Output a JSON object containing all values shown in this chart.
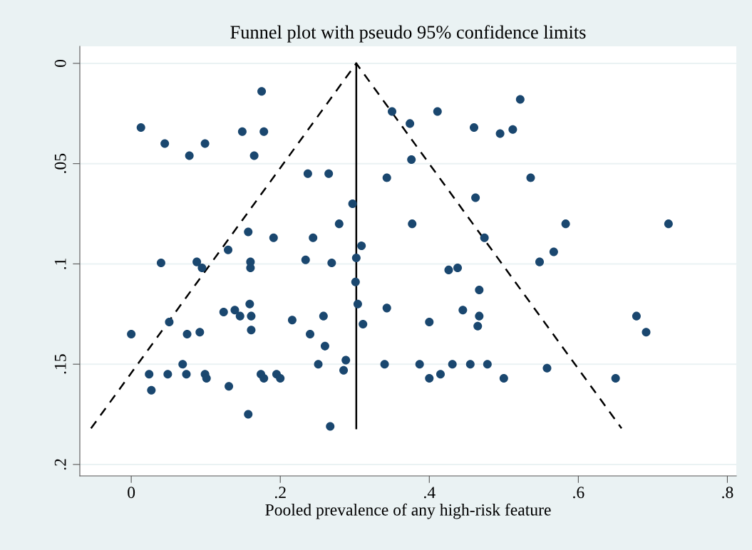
{
  "chart_data": {
    "type": "scatter",
    "title": "Funnel plot with pseudo 95% confidence limits",
    "xlabel": "Pooled prevalence of any high-risk feature",
    "xlim": [
      -0.069,
      0.812
    ],
    "ylim": [
      0.2057,
      -0.0085
    ],
    "xticks": [
      {
        "value": 0,
        "label": "0"
      },
      {
        "value": 0.2,
        "label": ".2"
      },
      {
        "value": 0.4,
        "label": ".4"
      },
      {
        "value": 0.6,
        "label": ".6"
      },
      {
        "value": 0.8,
        "label": ".8"
      }
    ],
    "yticks": [
      {
        "value": 0,
        "label": "0"
      },
      {
        "value": 0.05,
        "label": ".05"
      },
      {
        "value": 0.1,
        "label": ".1"
      },
      {
        "value": 0.15,
        "label": ".15"
      },
      {
        "value": 0.2,
        "label": ".2"
      }
    ],
    "grid": "y",
    "marker": "circle",
    "series": [
      {
        "color": "#1a476f",
        "x": [
          0.175,
          0.013,
          0.045,
          0.099,
          0.149,
          0.178,
          0.078,
          0.165,
          0.237,
          0.265,
          0.297,
          0.279,
          0.157,
          0.191,
          0.244,
          0.13,
          0.309,
          0.088,
          0.095,
          0.04,
          0.16,
          0.16,
          0.234,
          0.269,
          0.302,
          0.301,
          0.304,
          0.159,
          0.124,
          0.139,
          0.146,
          0.161,
          0.161,
          0.051,
          0.0,
          0.075,
          0.092,
          0.216,
          0.24,
          0.258,
          0.26,
          0.311,
          0.251,
          0.288,
          0.285,
          0.069,
          0.024,
          0.049,
          0.074,
          0.027,
          0.099,
          0.101,
          0.131,
          0.174,
          0.178,
          0.195,
          0.2,
          0.157,
          0.267,
          0.35,
          0.411,
          0.522,
          0.374,
          0.46,
          0.495,
          0.512,
          0.376,
          0.343,
          0.536,
          0.462,
          0.583,
          0.377,
          0.474,
          0.721,
          0.567,
          0.548,
          0.426,
          0.438,
          0.467,
          0.343,
          0.445,
          0.467,
          0.465,
          0.4,
          0.678,
          0.691,
          0.34,
          0.387,
          0.431,
          0.455,
          0.478,
          0.4,
          0.415,
          0.5,
          0.558,
          0.65
        ],
        "values": [
          0.014,
          0.032,
          0.04,
          0.04,
          0.034,
          0.034,
          0.046,
          0.046,
          0.055,
          0.055,
          0.07,
          0.08,
          0.084,
          0.087,
          0.087,
          0.093,
          0.091,
          0.099,
          0.102,
          0.0995,
          0.099,
          0.102,
          0.098,
          0.0995,
          0.097,
          0.109,
          0.12,
          0.12,
          0.124,
          0.123,
          0.126,
          0.126,
          0.133,
          0.129,
          0.135,
          0.135,
          0.134,
          0.128,
          0.135,
          0.126,
          0.141,
          0.13,
          0.15,
          0.148,
          0.153,
          0.15,
          0.155,
          0.155,
          0.155,
          0.163,
          0.155,
          0.157,
          0.161,
          0.155,
          0.157,
          0.155,
          0.157,
          0.175,
          0.181,
          0.024,
          0.024,
          0.018,
          0.03,
          0.032,
          0.035,
          0.033,
          0.048,
          0.057,
          0.057,
          0.067,
          0.08,
          0.08,
          0.087,
          0.08,
          0.094,
          0.099,
          0.103,
          0.102,
          0.113,
          0.122,
          0.123,
          0.126,
          0.131,
          0.129,
          0.126,
          0.134,
          0.15,
          0.15,
          0.15,
          0.15,
          0.15,
          0.157,
          0.155,
          0.157,
          0.152,
          0.157
        ]
      },
      {
        "type": "line",
        "color": "#000000",
        "line_style": "solid",
        "marker": "none",
        "x": [
          0.302,
          0.302
        ],
        "values": [
          0,
          0.182
        ]
      },
      {
        "type": "line",
        "color": "#000000",
        "line_style": "dashed",
        "marker": "none",
        "x": [
          -0.054,
          0.302,
          0.658
        ],
        "values": [
          0.182,
          0,
          0.182
        ]
      }
    ]
  }
}
